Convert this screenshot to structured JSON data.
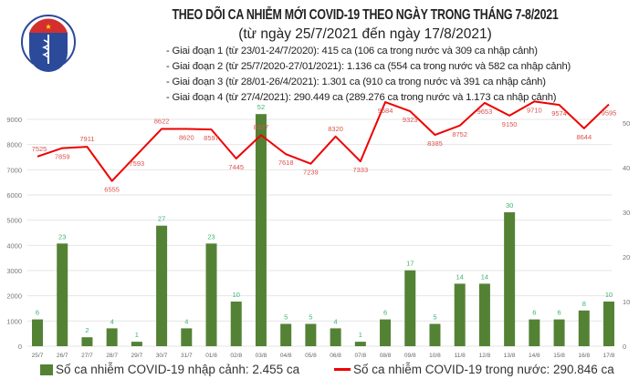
{
  "header": {
    "logo_text": "BỘ Y TẾ · MINISTRY OF HEALTH",
    "title": "THEO DÕI CA NHIỄM MỚI COVID-19 THEO NGÀY TRONG THÁNG 7-8/2021",
    "subtitle": "(từ ngày 25/7/2021 đến ngày 17/8/2021)",
    "phases": [
      "- Giai đoạn 1 (từ 23/01-24/7/2020): 415 ca (106 ca trong nước và 309 ca nhập cảnh)",
      "- Giai đoạn 2 (từ 25/7/2020-27/01/2021): 1.136 ca (554 ca trong nước và 582 ca nhập cảnh)",
      "- Giai đoạn 3 (từ 28/01-26/4/2021): 1.301 ca (910 ca trong nước và 391 ca nhập cảnh)",
      "- Giai đoạn 4 (từ 27/4/2021): 290.449 ca (289.276 ca trong nước và 1.173 ca nhập cảnh)"
    ]
  },
  "chart_data": {
    "type": "bar+line",
    "categories": [
      "25/7",
      "26/7",
      "27/7",
      "28/7",
      "29/7",
      "30/7",
      "31/7",
      "01/8",
      "02/8",
      "03/8",
      "04/8",
      "05/8",
      "06/8",
      "07/8",
      "08/8",
      "09/8",
      "10/8",
      "11/8",
      "12/8",
      "13/8",
      "14/8",
      "15/8",
      "16/8",
      "17/8"
    ],
    "series": [
      {
        "name": "Số ca nhiễm COVID-19 nhập cảnh: 2.455 ca",
        "type": "bar",
        "axis": "right",
        "color": "#548235",
        "label_color": "#3cb371",
        "values": [
          6,
          23,
          2,
          4,
          1,
          27,
          4,
          23,
          10,
          52,
          5,
          5,
          4,
          1,
          6,
          17,
          5,
          14,
          14,
          30,
          6,
          6,
          8,
          10
        ]
      },
      {
        "name": "Số ca nhiễm COVID-19 trong nước: 290.846 ca",
        "type": "line",
        "axis": "left",
        "color": "#ee0000",
        "label_color": "#d9534f",
        "values": [
          7525,
          7859,
          7911,
          6555,
          7593,
          8622,
          8620,
          8597,
          7445,
          8377,
          7618,
          7239,
          8320,
          7333,
          9684,
          9323,
          8385,
          8752,
          9653,
          9150,
          9710,
          9574,
          8644,
          9595
        ]
      }
    ],
    "left_axis": {
      "ticks": [
        0,
        1000,
        2000,
        3000,
        4000,
        5000,
        6000,
        7000,
        8000,
        9000
      ],
      "range": [
        0,
        9900
      ]
    },
    "right_axis": {
      "ticks": [
        0,
        10,
        20,
        30,
        40,
        50
      ],
      "range": [
        0,
        55
      ]
    },
    "grid": true,
    "legend": "bottom"
  }
}
